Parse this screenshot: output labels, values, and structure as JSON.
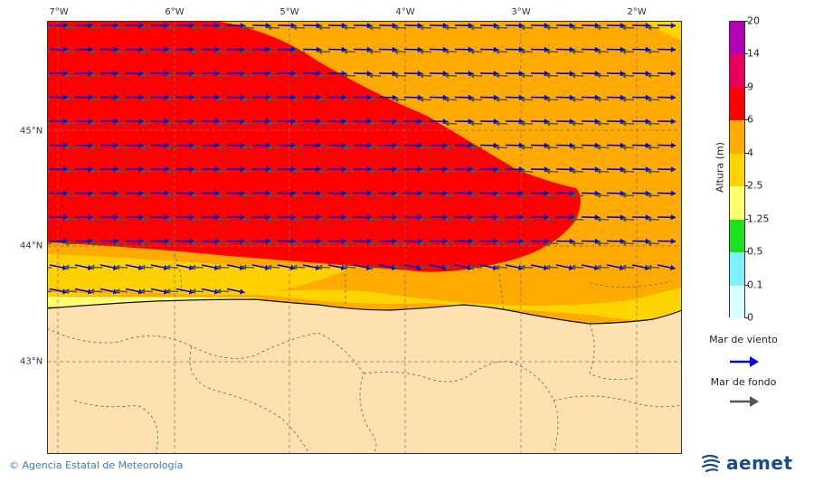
{
  "map": {
    "lon_labels": [
      "7°W",
      "6°W",
      "5°W",
      "4°W",
      "3°W",
      "2°W"
    ],
    "lat_labels": [
      "45°N",
      "44°N",
      "43°N"
    ]
  },
  "colorbar": {
    "title": "Altura (m)",
    "ticks": [
      "0",
      "0.1",
      "0.5",
      "1.25",
      "2.5",
      "4",
      "6",
      "9",
      "14",
      "20"
    ],
    "colors": [
      "#d9ffff",
      "#7ff0ff",
      "#1fe01f",
      "#ffff6e",
      "#ffd500",
      "#ffaa00",
      "#ff0000",
      "#e8005a",
      "#b400b4"
    ]
  },
  "legend": {
    "wind_sea_label": "Mar de viento",
    "wind_sea_color": "#0000dd",
    "swell_label": "Mar de fondo",
    "swell_color": "#555555"
  },
  "footer": {
    "copyright": "© Agencia Estatal de Meteorología",
    "logo": "aemet",
    "logo_icon": "aemet-swirl-icon"
  }
}
